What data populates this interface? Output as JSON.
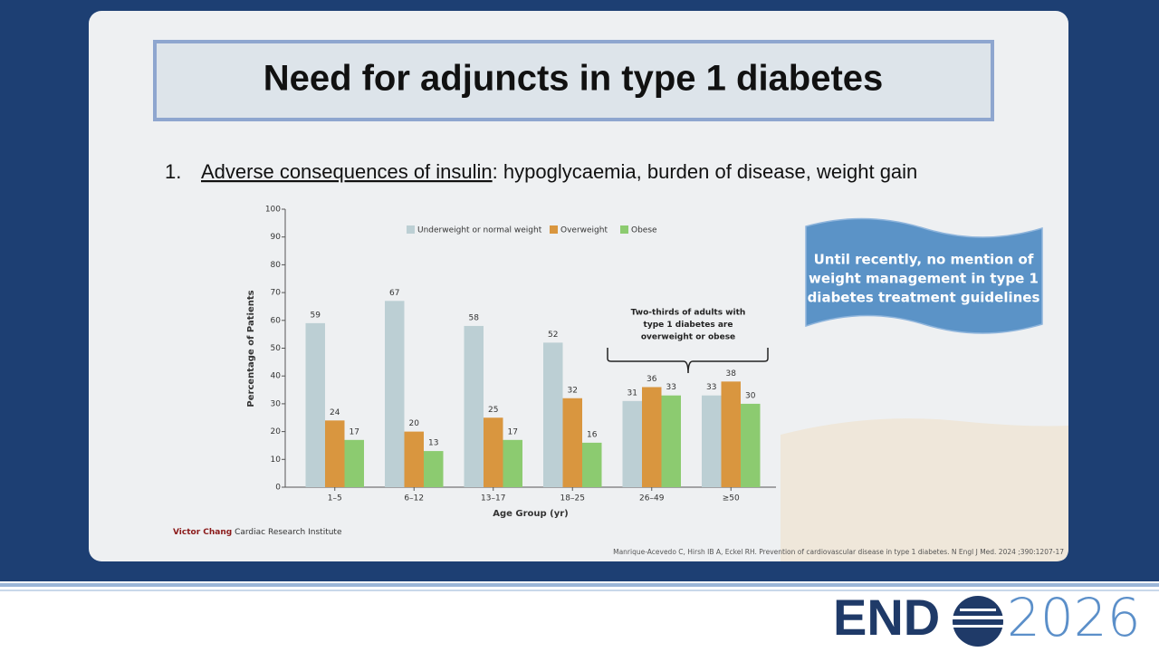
{
  "slide": {
    "title": "Need for adjuncts in type 1 diabetes",
    "bullet_number": "1.",
    "bullet_underlined": "Adverse consequences of insulin",
    "bullet_rest": ": hypoglycaemia, burden of disease, weight gain",
    "callout": [
      "Until recently, no mention of",
      "weight management in type 1",
      "diabetes treatment guidelines"
    ],
    "credit_bold": "Victor Chang",
    "credit_rest": " Cardiac Research Institute",
    "citation": "Manrique-Acevedo C, Hirsh IB A, Eckel RH. Prevention of cardiovascular disease in type 1 diabetes. N Engl J Med. 2024 ;390:1207-17",
    "logo_left": "END",
    "logo_right": "2026"
  },
  "chart_data": {
    "type": "bar",
    "x_label": "Age Group (yr)",
    "y_label": "Percentage of Patients",
    "annotation": [
      "Two-thirds of adults with",
      "type 1 diabetes are",
      "overweight or obese"
    ],
    "categories": [
      "1–5",
      "6–12",
      "13–17",
      "18–25",
      "26–49",
      "≥50"
    ],
    "series": [
      {
        "name": "Underweight or normal weight",
        "color": "#bccfd4",
        "values": [
          59,
          67,
          58,
          52,
          31,
          33
        ]
      },
      {
        "name": "Overweight",
        "color": "#d9963f",
        "values": [
          24,
          20,
          25,
          32,
          36,
          38
        ]
      },
      {
        "name": "Obese",
        "color": "#8ccb70",
        "values": [
          17,
          13,
          17,
          16,
          33,
          30
        ]
      }
    ],
    "ylim": [
      0,
      100
    ],
    "yticks": [
      0,
      10,
      20,
      30,
      40,
      50,
      60,
      70,
      80,
      90,
      100
    ]
  }
}
